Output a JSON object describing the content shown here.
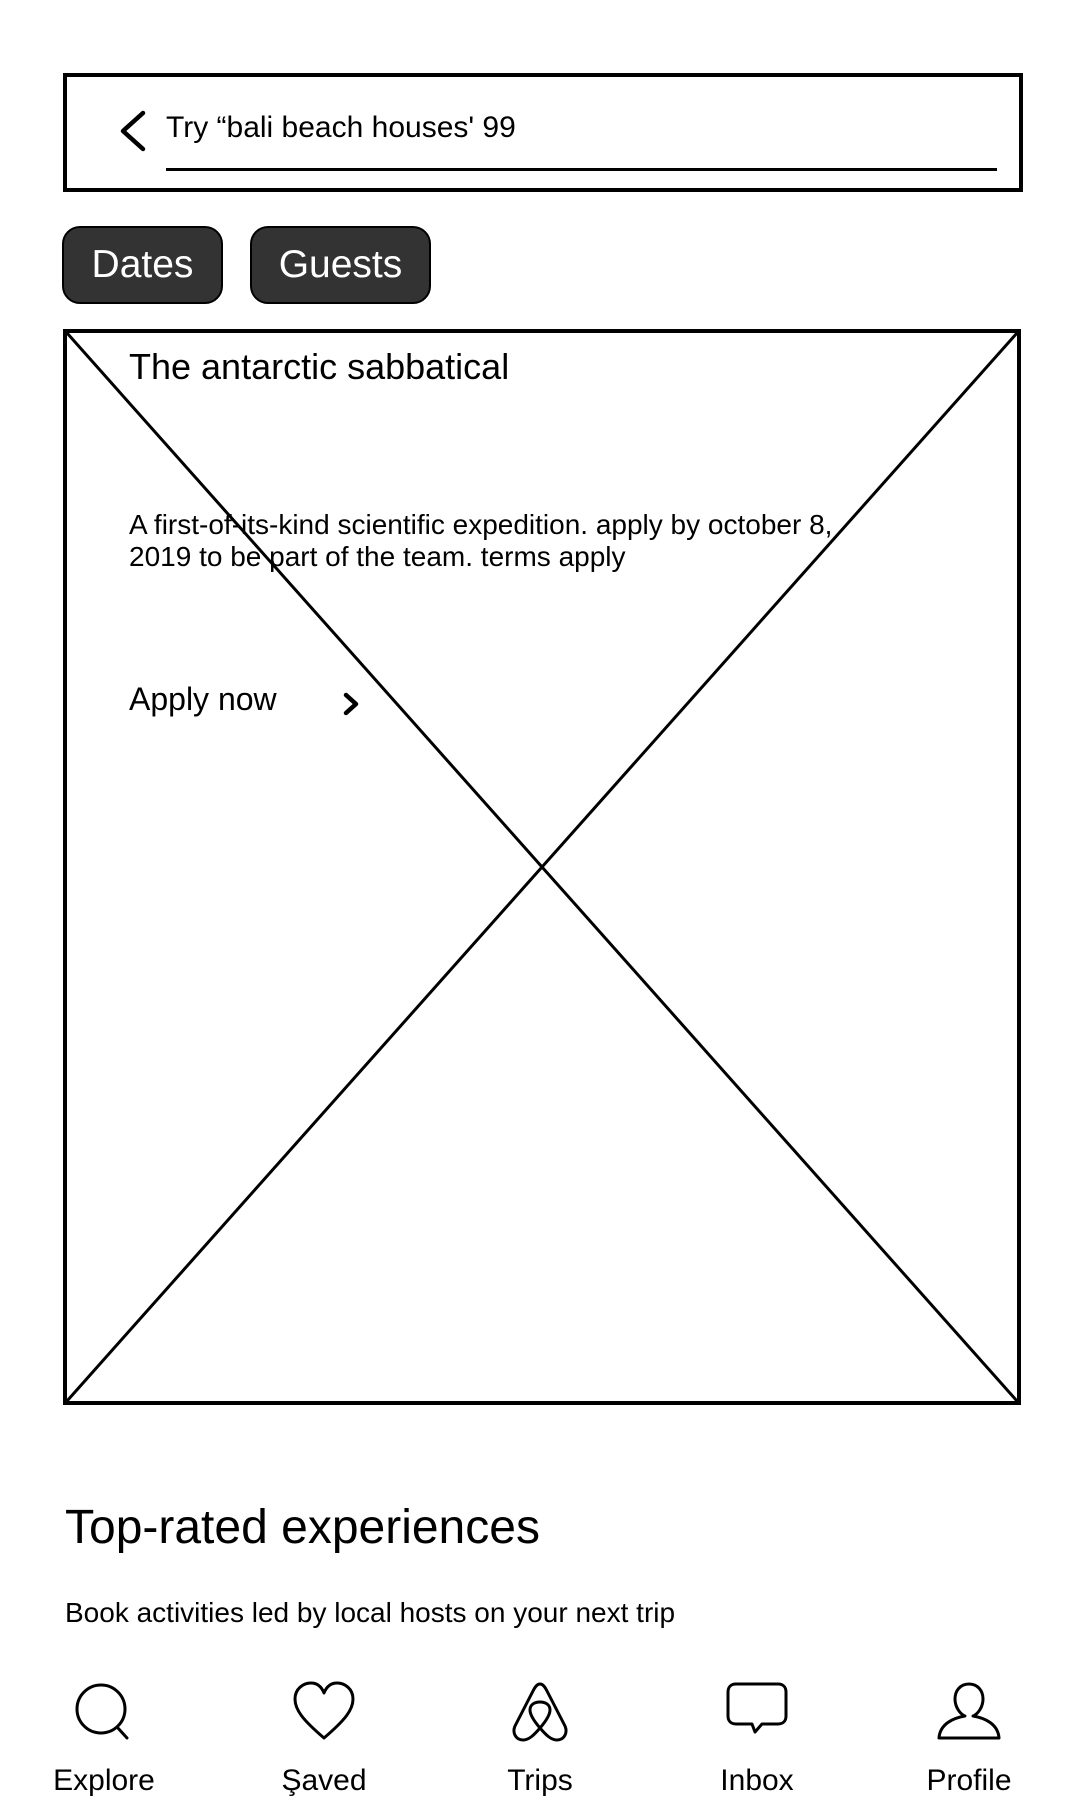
{
  "search": {
    "text": "Try “bali beach houses' 99"
  },
  "filters": [
    {
      "label": "Dates"
    },
    {
      "label": "Guests"
    }
  ],
  "hero": {
    "title": "The antarctic sabbatical",
    "description": "A first-of-its-kind scientific expedition. apply by october 8, 2019 to be part of the team. terms apply",
    "cta_label": "Apply now",
    "cta_icon": "chevron-right-icon",
    "image_icon": "image-placeholder"
  },
  "section": {
    "title": "Top-rated experiences",
    "subtitle": "Book activities led by local hosts on your next trip"
  },
  "nav": [
    {
      "label": "Explore",
      "icon": "search-icon"
    },
    {
      "label": "Şaved",
      "icon": "heart-icon"
    },
    {
      "label": "Trips",
      "icon": "airbnb-logo-icon"
    },
    {
      "label": "Inbox",
      "icon": "chat-bubble-icon"
    },
    {
      "label": "Profile",
      "icon": "user-icon"
    }
  ],
  "colors": {
    "pill_background": "#333333",
    "pill_text": "#ffffff",
    "line": "#000000",
    "background": "#ffffff"
  }
}
